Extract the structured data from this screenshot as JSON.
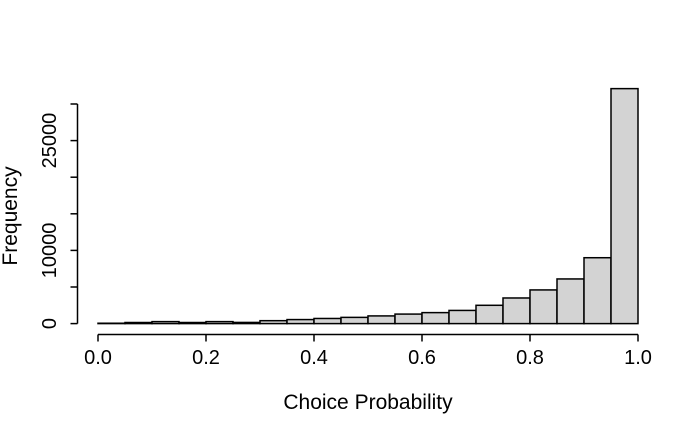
{
  "figure": {
    "background_color": "#ffffff",
    "title": ""
  },
  "chart_data": {
    "type": "histogram",
    "title": "",
    "xlabel": "Choice Probability",
    "ylabel": "Frequency",
    "xlim": [
      0.0,
      1.0
    ],
    "ylim": [
      0,
      30000
    ],
    "grid": false,
    "legend": null,
    "bar_fill": "#d3d3d3",
    "bar_stroke": "#000000",
    "axis_color": "#000000",
    "bin_edges": [
      0.0,
      0.05,
      0.1,
      0.15,
      0.2,
      0.25,
      0.3,
      0.35,
      0.4,
      0.45,
      0.5,
      0.55,
      0.6,
      0.65,
      0.7,
      0.75,
      0.8,
      0.85,
      0.9,
      0.95,
      1.0
    ],
    "counts": [
      50,
      150,
      270,
      150,
      270,
      160,
      400,
      550,
      700,
      850,
      1050,
      1300,
      1500,
      1800,
      2500,
      3500,
      4600,
      6100,
      9000,
      32100
    ],
    "x_ticks": [
      0.0,
      0.2,
      0.4,
      0.6,
      0.8,
      1.0
    ],
    "x_tick_labels": [
      "0.0",
      "0.2",
      "0.4",
      "0.6",
      "0.8",
      "1.0"
    ],
    "y_ticks": [
      0,
      5000,
      10000,
      15000,
      20000,
      25000,
      30000
    ],
    "y_tick_labels": [
      "0",
      "",
      "10000",
      "",
      "",
      "25000",
      ""
    ]
  }
}
